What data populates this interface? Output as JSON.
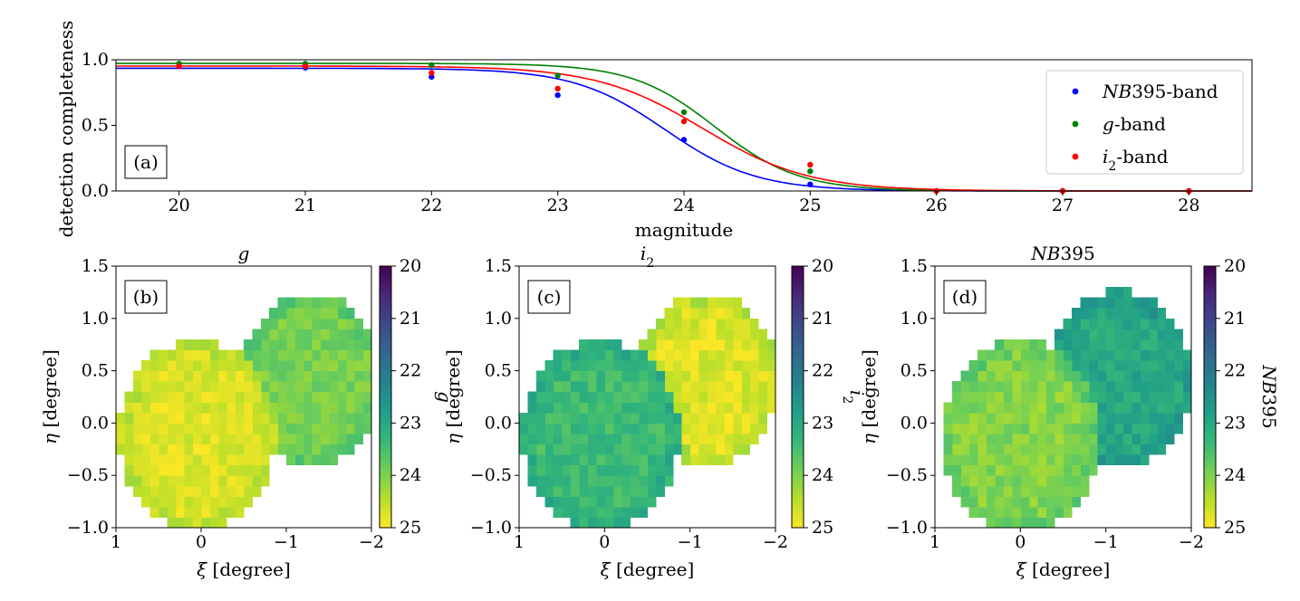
{
  "colors": {
    "nb395": "#0000ff",
    "g": "#008000",
    "i2": "#ff0000",
    "viridis": [
      "#440154",
      "#482878",
      "#3e4989",
      "#31688e",
      "#26828e",
      "#1f9e89",
      "#35b779",
      "#6ece58",
      "#b5de2b",
      "#fde725"
    ]
  },
  "chart_data": [
    {
      "type": "line",
      "panel_label": "(a)",
      "xlabel": "magnitude",
      "ylabel": "detection completeness",
      "xlim": [
        19.5,
        28.5
      ],
      "ylim": [
        0.0,
        1.0
      ],
      "xticks": [
        "20",
        "21",
        "22",
        "23",
        "24",
        "25",
        "26",
        "27",
        "28"
      ],
      "yticks": [
        "0.0",
        "0.5",
        "1.0"
      ],
      "legend_position": "upper right",
      "series": [
        {
          "key": "nb395",
          "legend_italic": "NB",
          "legend_rest": "395-band",
          "color": "#0000ff",
          "x": [
            20,
            21,
            22,
            23,
            24,
            25,
            26,
            27,
            28
          ],
          "y": [
            0.95,
            0.94,
            0.87,
            0.73,
            0.39,
            0.05,
            0.0,
            0.0,
            0.0
          ],
          "fit": {
            "a": 0.935,
            "m50": 23.85,
            "w": 0.36
          }
        },
        {
          "key": "g",
          "legend_italic": "g",
          "legend_rest": "-band",
          "color": "#008000",
          "x": [
            20,
            21,
            22,
            23,
            24,
            25,
            26,
            27,
            28
          ],
          "y": [
            0.97,
            0.97,
            0.96,
            0.88,
            0.6,
            0.15,
            0.0,
            0.0,
            0.0
          ],
          "fit": {
            "a": 0.972,
            "m50": 24.25,
            "w": 0.33
          }
        },
        {
          "key": "i2",
          "legend_italic": "i",
          "legend_sub": "2",
          "legend_rest": "-band",
          "color": "#ff0000",
          "x": [
            20,
            21,
            22,
            23,
            24,
            25,
            26,
            27,
            28
          ],
          "y": [
            0.95,
            0.95,
            0.9,
            0.78,
            0.53,
            0.2,
            0.0,
            0.0,
            0.0
          ],
          "fit": {
            "a": 0.952,
            "m50": 24.15,
            "w": 0.42
          }
        }
      ]
    },
    {
      "type": "heatmap",
      "panel_label": "(b)",
      "title_italic": "g",
      "title_sub": "",
      "cbar_label_italic": "g",
      "cbar_label_sub": "",
      "xlabel_sym": "ξ",
      "xlabel_rest": " [degree]",
      "ylabel_sym": "η",
      "ylabel_rest": " [degree]",
      "xlim": [
        1,
        -2
      ],
      "ylim": [
        -1.0,
        1.5
      ],
      "xticks": [
        "1",
        "0",
        "−1",
        "−2"
      ],
      "yticks": [
        "−1.0",
        "−0.5",
        "0.0",
        "0.5",
        "1.0",
        "1.5"
      ],
      "clim": [
        25,
        20
      ],
      "cbar_ticks": [
        "20",
        "21",
        "22",
        "23",
        "24",
        "25"
      ],
      "fields": [
        {
          "cx": 0.05,
          "cy": -0.12,
          "r": 0.92,
          "level": 24.75
        },
        {
          "cx": -1.3,
          "cy": 0.42,
          "r": 0.82,
          "level": 23.95
        }
      ],
      "noise": 0.25
    },
    {
      "type": "heatmap",
      "panel_label": "(c)",
      "title_italic": "i",
      "title_sub": "2",
      "cbar_label_italic": "i",
      "cbar_label_sub": "2",
      "xlabel_sym": "ξ",
      "xlabel_rest": " [degree]",
      "ylabel_sym": "η",
      "ylabel_rest": " [degree]",
      "xlim": [
        1,
        -2
      ],
      "ylim": [
        -1.0,
        1.5
      ],
      "xticks": [
        "1",
        "0",
        "−1",
        "−2"
      ],
      "yticks": [
        "−1.0",
        "−0.5",
        "0.0",
        "0.5",
        "1.0",
        "1.5"
      ],
      "clim": [
        25,
        20
      ],
      "cbar_ticks": [
        "20",
        "21",
        "22",
        "23",
        "24",
        "25"
      ],
      "fields": [
        {
          "cx": 0.05,
          "cy": -0.12,
          "r": 0.92,
          "level": 23.4
        },
        {
          "cx": -1.2,
          "cy": 0.42,
          "r": 0.82,
          "level": 24.75
        }
      ],
      "noise": 0.3
    },
    {
      "type": "heatmap",
      "panel_label": "(d)",
      "title_italic": "NB",
      "title_sub": "",
      "title_rest": "395",
      "cbar_label_italic": "NB",
      "cbar_label_sub": "",
      "cbar_label_rest": "395",
      "xlabel_sym": "ξ",
      "xlabel_rest": " [degree]",
      "ylabel_sym": "η",
      "ylabel_rest": " [degree]",
      "xlim": [
        1,
        -2
      ],
      "ylim": [
        -1.0,
        1.5
      ],
      "xticks": [
        "1",
        "0",
        "−1",
        "−2"
      ],
      "yticks": [
        "−1.0",
        "−0.5",
        "0.0",
        "0.5",
        "1.0",
        "1.5"
      ],
      "clim": [
        25,
        20
      ],
      "cbar_ticks": [
        "20",
        "21",
        "22",
        "23",
        "24",
        "25"
      ],
      "fields": [
        {
          "cx": 0.0,
          "cy": -0.12,
          "r": 0.92,
          "level": 24.05
        },
        {
          "cx": -1.15,
          "cy": 0.42,
          "r": 0.85,
          "level": 23.0
        }
      ],
      "noise": 0.3
    }
  ]
}
